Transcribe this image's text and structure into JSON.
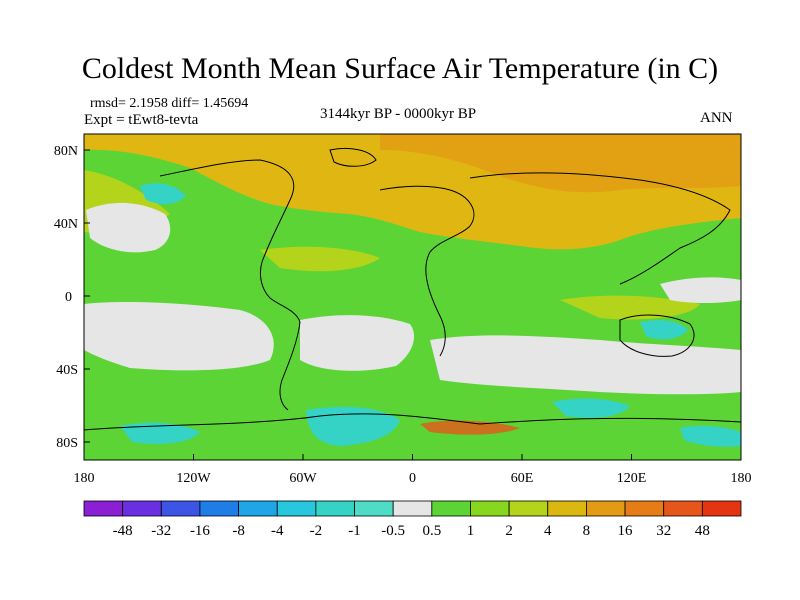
{
  "title": "Coldest Month Mean Surface Air Temperature (in C)",
  "stats": "rmsd= 2.1958 diff= 1.45694",
  "expt": "Expt = tEwt8-tevta",
  "period": "3144kyr BP - 0000kyr BP",
  "season": "ANN",
  "axes": {
    "y_ticks": [
      "80N",
      "40N",
      "0",
      "40S",
      "80S"
    ],
    "x_ticks": [
      "180",
      "120W",
      "60W",
      "0",
      "60E",
      "120E",
      "180"
    ]
  },
  "legend": {
    "labels": [
      "-48",
      "-32",
      "-16",
      "-8",
      "-4",
      "-2",
      "-1",
      "-0.5",
      "0.5",
      "1",
      "2",
      "4",
      "8",
      "16",
      "32",
      "48"
    ],
    "colors": [
      "#8b1fd6",
      "#6a2fe0",
      "#3c55e6",
      "#1f7de8",
      "#1ea6e6",
      "#27c7dd",
      "#35d3c6",
      "#4fdcc6",
      "#e6e6e6",
      "#5cd435",
      "#86d71e",
      "#b4d41c",
      "#dbb80f",
      "#e39a14",
      "#e67c16",
      "#e6561a",
      "#e53412"
    ]
  }
}
